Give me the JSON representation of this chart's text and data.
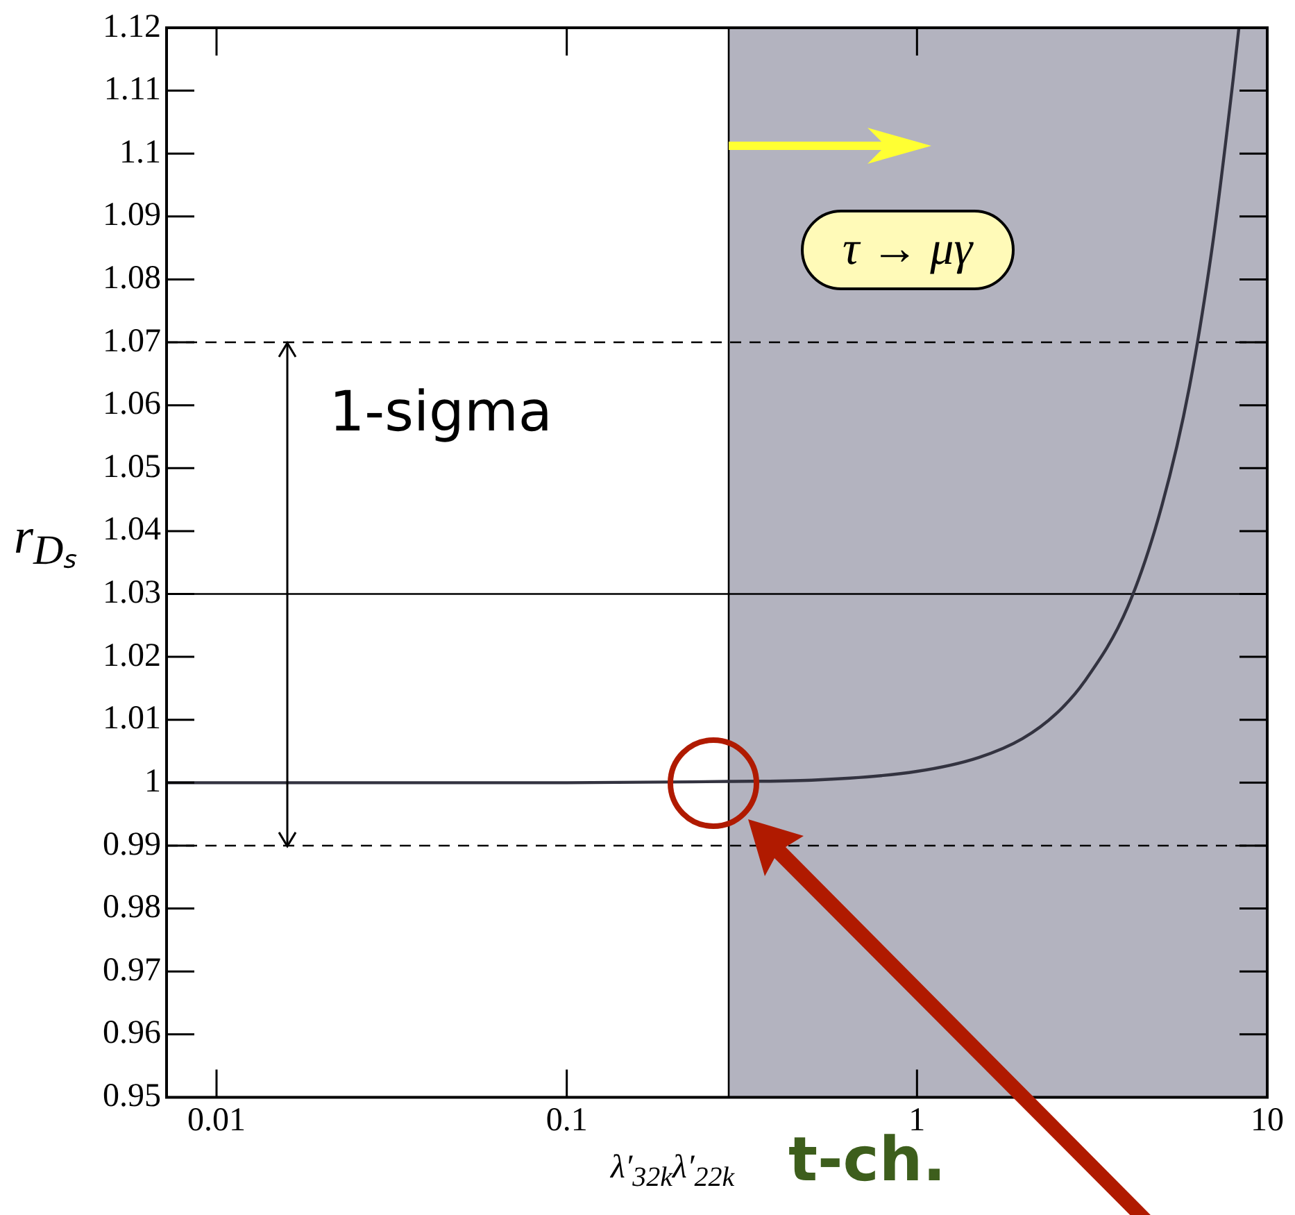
{
  "chart_data": {
    "type": "line",
    "xlabel": "λ′$_{32k}$λ′$_{22k}$",
    "ylabel": "r$_{Dₛ}$",
    "log": "x",
    "annotations": [
      "1-sigma",
      "τ → μγ",
      "t-ch."
    ],
    "x": [
      0.0072,
      0.1,
      0.29,
      0.5,
      1,
      1.5,
      2,
      2.5,
      3,
      4,
      5,
      6,
      7,
      8,
      8.3
    ],
    "series": [
      {
        "color": "#333340",
        "values": [
          1,
          1,
          1.0002,
          1.0004,
          1.0018,
          1.004,
          1.007,
          1.011,
          1.016,
          1.028,
          1.044,
          1.063,
          1.086,
          1.112,
          1.12
        ]
      }
    ],
    "xlim": [
      0.0072,
      10
    ],
    "xticks": [
      0.01,
      0.1,
      1,
      10
    ],
    "ylim": [
      0.95,
      1.12
    ],
    "yticks": [
      0.95,
      0.96,
      0.97,
      0.98,
      0.99,
      1,
      1.01,
      1.02,
      1.03,
      1.04,
      1.05,
      1.06,
      1.07,
      1.08,
      1.09,
      1.1,
      1.11,
      1.12
    ],
    "ref_lines": [
      {
        "axis": "y",
        "value": 1.07,
        "line_style": "dashed",
        "color": "#000000"
      },
      {
        "axis": "y",
        "value": 0.99,
        "line_style": "dashed",
        "color": "#000000"
      },
      {
        "axis": "y",
        "value": 1.03,
        "line_style": "solid",
        "color": "#000000"
      },
      {
        "axis": "x",
        "value": 0.29,
        "line_style": "solid",
        "color": "#000000"
      }
    ],
    "bands": [
      {
        "axis": "x",
        "from": 0.29,
        "to": 10,
        "color": "#b3b3bf"
      }
    ],
    "marker": "none",
    "line_style": "solid",
    "legend": false
  }
}
